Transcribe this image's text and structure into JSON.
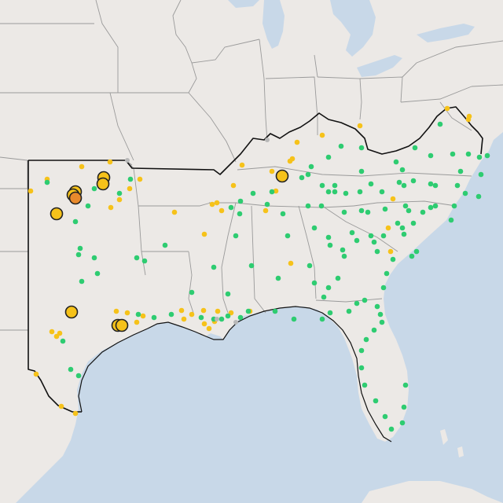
{
  "map": {
    "colors": {
      "water": "#c8d8e8",
      "land": "#ece9e6",
      "land_shade": "#e4e1dd",
      "state_border": "#9a9a9a",
      "region_outline": "#111111",
      "marker_green": "#2ecc71",
      "marker_gold": "#f6c21a",
      "marker_orange": "#e88a2c",
      "marker_gray": "#b8b8b8"
    },
    "legend": []
  }
}
